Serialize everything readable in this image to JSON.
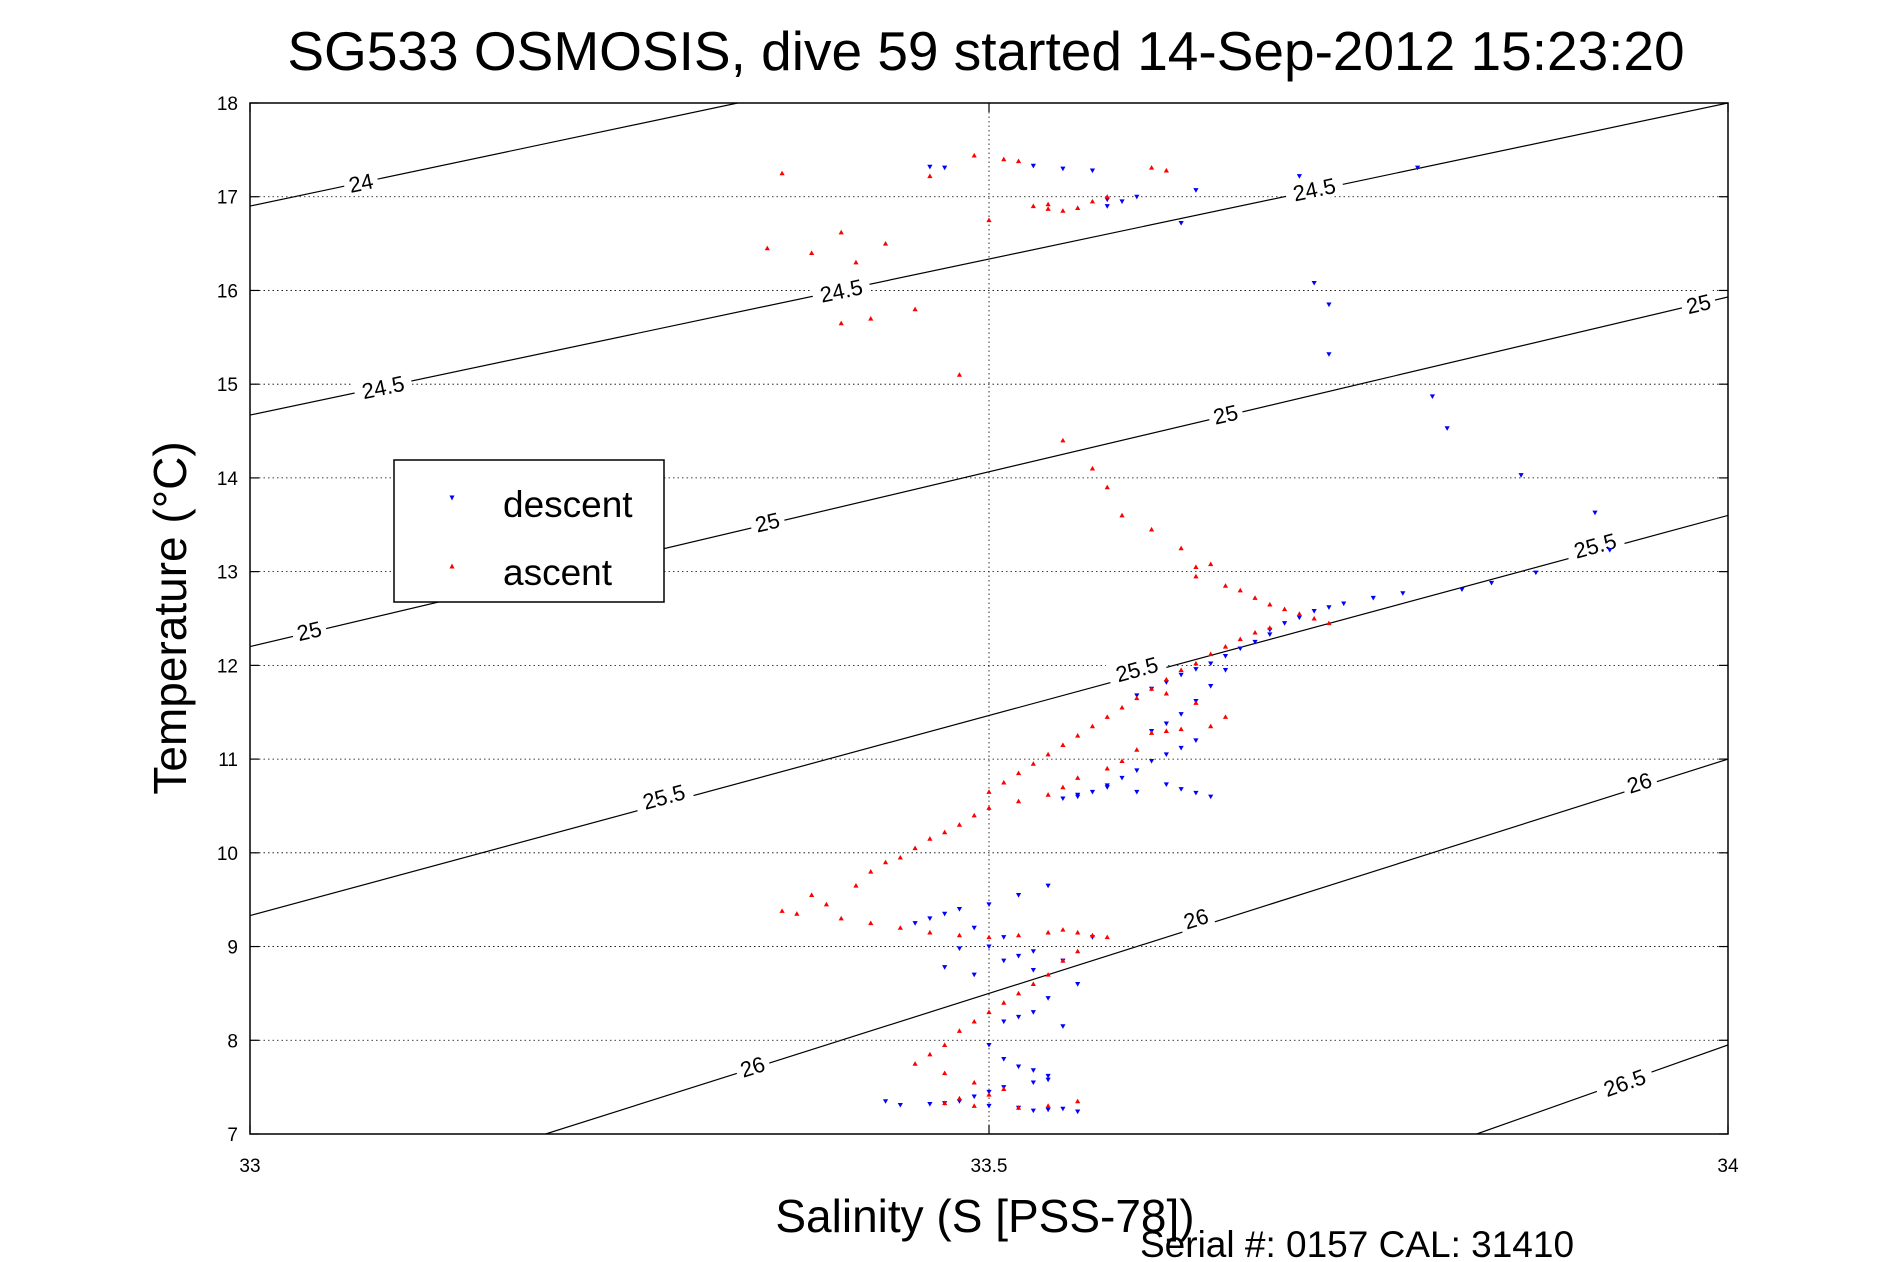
{
  "chart_data": {
    "type": "scatter",
    "title": "SG533 OSMOSIS, dive 59 started 14-Sep-2012 15:23:20",
    "xlabel": "Salinity (S [PSS-78])",
    "ylabel": "Temperature (°C)",
    "xlim": [
      33,
      34
    ],
    "ylim": [
      7,
      18
    ],
    "xticks": [
      33,
      33.5,
      34
    ],
    "xtick_labels": [
      "33",
      "33.5",
      "34"
    ],
    "yticks": [
      7,
      8,
      9,
      10,
      11,
      12,
      13,
      14,
      15,
      16,
      17,
      18
    ],
    "ytick_labels": [
      "7",
      "8",
      "9",
      "10",
      "11",
      "12",
      "13",
      "14",
      "15",
      "16",
      "17",
      "18"
    ],
    "grid": true,
    "legend_position": "center-left",
    "footer": "Serial #: 0157  CAL: 31410",
    "colors": {
      "descent": "#0000ff",
      "ascent": "#ff0000",
      "contour": "#000000"
    },
    "density_contours": [
      {
        "label": "24",
        "points": [
          [
            33,
            16.9
          ],
          [
            33.33,
            18.0
          ]
        ],
        "labels_at": [
          [
            33.075,
            17.15
          ]
        ]
      },
      {
        "label": "24.5",
        "points": [
          [
            33,
            14.67
          ],
          [
            34,
            18.0
          ]
        ],
        "labels_at": [
          [
            33.09,
            14.97
          ],
          [
            33.4,
            16.0
          ],
          [
            33.72,
            17.08
          ]
        ]
      },
      {
        "label": "25",
        "points": [
          [
            33,
            12.2
          ],
          [
            34,
            15.93
          ]
        ],
        "labels_at": [
          [
            33.04,
            12.37
          ],
          [
            33.35,
            13.53
          ],
          [
            33.66,
            14.68
          ],
          [
            33.98,
            15.86
          ]
        ]
      },
      {
        "label": "25.5",
        "points": [
          [
            33,
            9.33
          ],
          [
            34,
            13.6
          ]
        ],
        "labels_at": [
          [
            33.28,
            10.6
          ],
          [
            33.6,
            11.96
          ],
          [
            33.91,
            13.28
          ]
        ]
      },
      {
        "label": "26",
        "points": [
          [
            33.2,
            7.0
          ],
          [
            34,
            11.0
          ]
        ],
        "labels_at": [
          [
            33.34,
            7.72
          ],
          [
            33.64,
            9.3
          ],
          [
            33.94,
            10.75
          ]
        ]
      },
      {
        "label": "26.5",
        "points": [
          [
            33.83,
            7.0
          ],
          [
            34,
            7.95
          ]
        ],
        "labels_at": [
          [
            33.93,
            7.55
          ]
        ]
      }
    ],
    "series": [
      {
        "name": "descent",
        "marker": "triangle-down",
        "x": [
          33.46,
          33.47,
          33.53,
          33.55,
          33.57,
          33.58,
          33.59,
          33.58,
          33.6,
          33.63,
          33.64,
          33.71,
          33.79,
          33.72,
          33.73,
          33.73,
          33.8,
          33.81,
          33.86,
          33.91,
          33.92,
          33.87,
          33.84,
          33.82,
          33.78,
          33.76,
          33.74,
          33.73,
          33.72,
          33.71,
          33.7,
          33.69,
          33.69,
          33.68,
          33.67,
          33.66,
          33.65,
          33.64,
          33.63,
          33.62,
          33.61,
          33.6,
          33.66,
          33.65,
          33.64,
          33.63,
          33.62,
          33.61,
          33.64,
          33.63,
          33.62,
          33.61,
          33.6,
          33.59,
          33.58,
          33.57,
          33.56,
          33.55,
          33.62,
          33.63,
          33.64,
          33.65,
          33.6,
          33.58,
          33.56,
          33.54,
          33.52,
          33.5,
          33.48,
          33.47,
          33.46,
          33.45,
          33.49,
          33.51,
          33.5,
          33.48,
          33.53,
          33.52,
          33.51,
          33.47,
          33.49,
          33.53,
          33.57,
          33.55,
          33.56,
          33.54,
          33.53,
          33.52,
          33.51,
          33.55,
          33.5,
          33.51,
          33.52,
          33.53,
          33.54,
          33.54,
          33.53,
          33.51,
          33.5,
          33.49,
          33.48,
          33.47,
          33.46,
          33.44,
          33.43,
          33.5,
          33.52,
          33.53,
          33.54,
          33.55,
          33.56
        ],
        "y": [
          17.32,
          17.31,
          17.33,
          17.3,
          17.28,
          16.97,
          16.95,
          16.9,
          17.0,
          16.72,
          17.07,
          17.22,
          17.31,
          16.08,
          15.85,
          15.32,
          14.87,
          14.53,
          14.03,
          13.63,
          13.23,
          12.99,
          12.88,
          12.81,
          12.77,
          12.72,
          12.66,
          12.62,
          12.58,
          12.51,
          12.45,
          12.38,
          12.33,
          12.25,
          12.18,
          12.1,
          12.02,
          11.96,
          11.9,
          11.82,
          11.75,
          11.68,
          11.95,
          11.78,
          11.62,
          11.48,
          11.38,
          11.3,
          11.2,
          11.12,
          11.05,
          10.98,
          10.88,
          10.8,
          10.72,
          10.65,
          10.6,
          10.58,
          10.73,
          10.68,
          10.64,
          10.6,
          10.65,
          10.7,
          10.62,
          9.65,
          9.55,
          9.45,
          9.4,
          9.35,
          9.3,
          9.25,
          9.2,
          9.1,
          9.0,
          8.98,
          8.95,
          8.9,
          8.85,
          8.78,
          8.7,
          8.75,
          9.1,
          8.85,
          8.6,
          8.45,
          8.3,
          8.25,
          8.2,
          8.15,
          7.95,
          7.8,
          7.72,
          7.68,
          7.62,
          7.58,
          7.55,
          7.5,
          7.45,
          7.4,
          7.35,
          7.33,
          7.32,
          7.31,
          7.35,
          7.3,
          7.28,
          7.25,
          7.26,
          7.27,
          7.24
        ]
      },
      {
        "name": "ascent",
        "marker": "triangle-up",
        "x": [
          33.36,
          33.4,
          33.43,
          33.46,
          33.49,
          33.51,
          33.52,
          33.54,
          33.56,
          33.57,
          33.58,
          33.61,
          33.62,
          33.55,
          33.54,
          33.53,
          33.5,
          33.35,
          33.38,
          33.41,
          33.4,
          33.42,
          33.45,
          33.48,
          33.55,
          33.57,
          33.58,
          33.59,
          33.61,
          33.63,
          33.64,
          33.65,
          33.64,
          33.66,
          33.67,
          33.68,
          33.69,
          33.7,
          33.71,
          33.72,
          33.73,
          33.69,
          33.68,
          33.67,
          33.66,
          33.65,
          33.64,
          33.63,
          33.62,
          33.61,
          33.6,
          33.59,
          33.58,
          33.57,
          33.56,
          33.55,
          33.54,
          33.53,
          33.52,
          33.51,
          33.5,
          33.62,
          33.64,
          33.66,
          33.65,
          33.63,
          33.62,
          33.61,
          33.6,
          33.59,
          33.58,
          33.56,
          33.55,
          33.54,
          33.52,
          33.5,
          33.49,
          33.48,
          33.47,
          33.46,
          33.45,
          33.44,
          33.43,
          33.42,
          33.41,
          33.38,
          33.39,
          33.36,
          33.37,
          33.4,
          33.42,
          33.44,
          33.46,
          33.48,
          33.5,
          33.52,
          33.54,
          33.55,
          33.56,
          33.57,
          33.58,
          33.56,
          33.55,
          33.54,
          33.53,
          33.52,
          33.51,
          33.5,
          33.49,
          33.48,
          33.47,
          33.46,
          33.45,
          33.47,
          33.49,
          33.51,
          33.5,
          33.48,
          33.47,
          33.49,
          33.52,
          33.54,
          33.56
        ],
        "y": [
          17.25,
          16.62,
          16.5,
          17.22,
          17.44,
          17.4,
          17.38,
          16.92,
          16.88,
          16.95,
          17.0,
          17.31,
          17.28,
          16.85,
          16.87,
          16.9,
          16.75,
          16.45,
          16.4,
          16.3,
          15.65,
          15.7,
          15.8,
          15.1,
          14.4,
          14.1,
          13.9,
          13.6,
          13.45,
          13.25,
          13.05,
          13.08,
          12.95,
          12.85,
          12.8,
          12.72,
          12.65,
          12.6,
          12.55,
          12.5,
          12.45,
          12.4,
          12.35,
          12.28,
          12.2,
          12.12,
          12.02,
          11.95,
          11.85,
          11.75,
          11.65,
          11.55,
          11.45,
          11.35,
          11.25,
          11.15,
          11.05,
          10.95,
          10.85,
          10.75,
          10.65,
          11.7,
          11.6,
          11.45,
          11.35,
          11.32,
          11.3,
          11.28,
          11.1,
          10.98,
          10.9,
          10.8,
          10.7,
          10.62,
          10.55,
          10.48,
          10.4,
          10.3,
          10.22,
          10.15,
          10.05,
          9.95,
          9.9,
          9.8,
          9.65,
          9.55,
          9.45,
          9.38,
          9.35,
          9.3,
          9.25,
          9.2,
          9.15,
          9.12,
          9.1,
          9.12,
          9.15,
          9.18,
          9.15,
          9.12,
          9.1,
          8.95,
          8.85,
          8.7,
          8.6,
          8.5,
          8.4,
          8.3,
          8.2,
          8.1,
          7.95,
          7.85,
          7.75,
          7.65,
          7.55,
          7.48,
          7.42,
          7.38,
          7.33,
          7.3,
          7.28,
          7.3,
          7.35
        ]
      }
    ]
  }
}
